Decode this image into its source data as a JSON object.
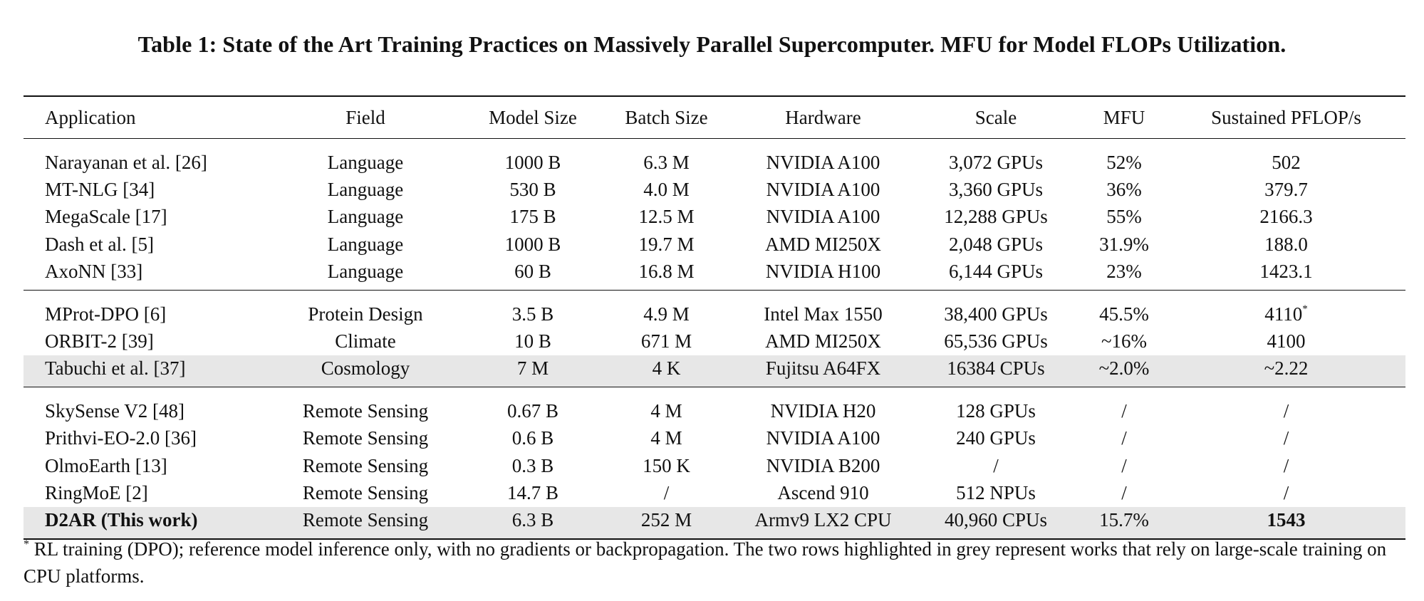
{
  "caption": "Table 1: State of the Art Training Practices on Massively Parallel Supercomputer. MFU for Model FLOPs Utilization.",
  "headers": [
    "Application",
    "Field",
    "Model Size",
    "Batch Size",
    "Hardware",
    "Scale",
    "MFU",
    "Sustained PFLOP/s"
  ],
  "groups": [
    {
      "rows": [
        {
          "cells": [
            "Narayanan et al. [26]",
            "Language",
            "1000 B",
            "6.3 M",
            "NVIDIA A100",
            "3,072 GPUs",
            "52%",
            "502"
          ]
        },
        {
          "cells": [
            "MT-NLG [34]",
            "Language",
            "530 B",
            "4.0 M",
            "NVIDIA A100",
            "3,360 GPUs",
            "36%",
            "379.7"
          ]
        },
        {
          "cells": [
            "MegaScale [17]",
            "Language",
            "175 B",
            "12.5 M",
            "NVIDIA A100",
            "12,288 GPUs",
            "55%",
            "2166.3"
          ]
        },
        {
          "cells": [
            "Dash et al. [5]",
            "Language",
            "1000 B",
            "19.7 M",
            "AMD MI250X",
            "2,048 GPUs",
            "31.9%",
            "188.0"
          ]
        },
        {
          "cells": [
            "AxoNN [33]",
            "Language",
            "60 B",
            "16.8 M",
            "NVIDIA H100",
            "6,144 GPUs",
            "23%",
            "1423.1"
          ]
        }
      ]
    },
    {
      "rows": [
        {
          "cells": [
            "MProt-DPO [6]",
            "Protein Design",
            "3.5 B",
            "4.9 M",
            "Intel Max 1550",
            "38,400 GPUs",
            "45.5%",
            "4110"
          ],
          "last_sup": "*"
        },
        {
          "cells": [
            "ORBIT-2 [39]",
            "Climate",
            "10 B",
            "671 M",
            "AMD MI250X",
            "65,536 GPUs",
            "~16%",
            "4100"
          ]
        },
        {
          "cells": [
            "Tabuchi et al. [37]",
            "Cosmology",
            "7 M",
            "4 K",
            "Fujitsu A64FX",
            "16384 CPUs",
            "~2.0%",
            "~2.22"
          ],
          "highlighted": true
        }
      ]
    },
    {
      "rows": [
        {
          "cells": [
            "SkySense V2 [48]",
            "Remote Sensing",
            "0.67 B",
            "4 M",
            "NVIDIA H20",
            "128 GPUs",
            "/",
            "/"
          ]
        },
        {
          "cells": [
            "Prithvi-EO-2.0 [36]",
            "Remote Sensing",
            "0.6 B",
            "4 M",
            "NVIDIA A100",
            "240 GPUs",
            "/",
            "/"
          ]
        },
        {
          "cells": [
            "OlmoEarth [13]",
            "Remote Sensing",
            "0.3 B",
            "150 K",
            "NVIDIA B200",
            "/",
            "/",
            "/"
          ]
        },
        {
          "cells": [
            "RingMoE [2]",
            "Remote Sensing",
            "14.7 B",
            "/",
            "Ascend 910",
            "512 NPUs",
            "/",
            "/"
          ]
        },
        {
          "cells": [
            "D2AR (This work)",
            "Remote Sensing",
            "6.3 B",
            "252 M",
            "Armv9 LX2 CPU",
            "40,960 CPUs",
            "15.7%",
            "1543"
          ],
          "highlighted": true,
          "bold_cols": [
            0,
            7
          ]
        }
      ]
    }
  ],
  "footnote": {
    "marker": "*",
    "text": " RL training (DPO); reference model inference only, with no gradients or backpropagation. The two rows highlighted in grey represent works that rely on large-scale training on CPU platforms."
  },
  "colors": {
    "highlight": "#e7e7e7",
    "rule": "#111111"
  }
}
